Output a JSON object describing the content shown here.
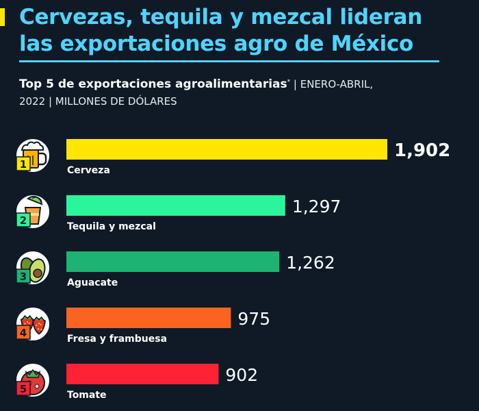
{
  "headline": "Cervezas, tequila y mezcal lideran las exportaciones agro de México",
  "subtitle": {
    "strong": "Top 5 de exportaciones agroalimentarias",
    "mark": "*",
    "rest_line1": " | ENERO-ABRIL,",
    "rest_line2": "2022 | MILLONES DE DÓLARES"
  },
  "colors": {
    "background": "#0f1a26",
    "headline": "#4fd4ff",
    "accent": "#ffe600"
  },
  "chart_data": {
    "type": "bar",
    "orientation": "horizontal",
    "categories": [
      "Cerveza",
      "Tequila y mezcal",
      "Aguacate",
      "Fresa y frambuesa",
      "Tomate"
    ],
    "values": [
      1902,
      1297,
      1262,
      975,
      902
    ],
    "value_labels": [
      "1,902",
      "1,297",
      "1,262",
      "975",
      "902"
    ],
    "ranks": [
      "1",
      "2",
      "3",
      "4",
      "5"
    ],
    "icons": [
      "beer-mug-icon",
      "tequila-glass-icon",
      "avocado-icon",
      "strawberries-icon",
      "tomato-icon"
    ],
    "bar_colors": [
      "#ffe600",
      "#2bf59b",
      "#1db373",
      "#fa6420",
      "#ff2235"
    ],
    "badge_colors": [
      "#ffe600",
      "#2bf59b",
      "#1db373",
      "#fa6420",
      "#ff2235"
    ],
    "highlight_first": true
  }
}
